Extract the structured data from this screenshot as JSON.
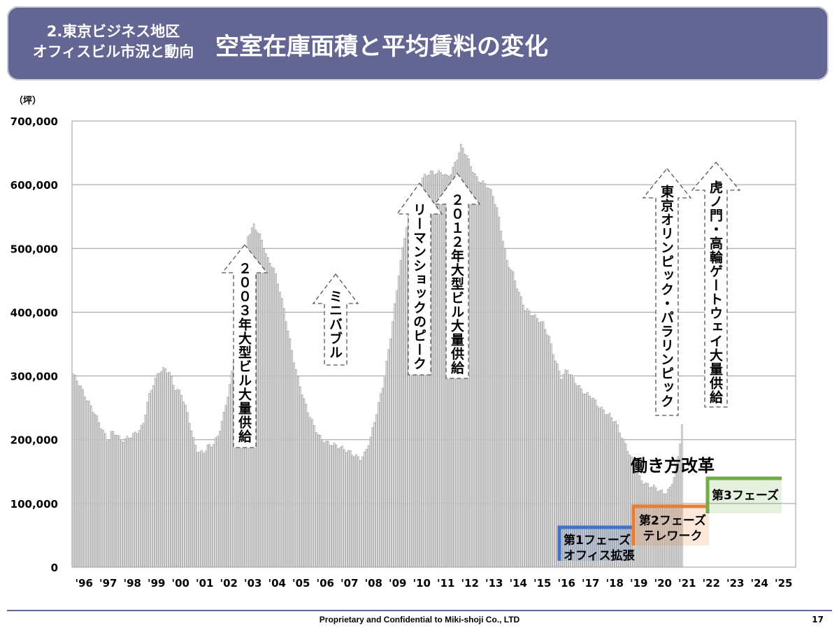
{
  "header": {
    "section_line1": "2.東京ビジネス地区",
    "section_line2": "オフィスビル市況と動向",
    "title": "空室在庫面積と平均賃料の変化"
  },
  "chart_data": {
    "type": "bar",
    "unit_label": "（坪）",
    "ylim": [
      0,
      700000
    ],
    "yticks": [
      "0",
      "100,000",
      "200,000",
      "300,000",
      "400,000",
      "500,000",
      "600,000",
      "700,000"
    ],
    "year_labels": [
      "'96",
      "'97",
      "'98",
      "'99",
      "'00",
      "'01",
      "'02",
      "'03",
      "'04",
      "'05",
      "'06",
      "'07",
      "'08",
      "'09",
      "'10",
      "'11",
      "'12",
      "'13",
      "'14",
      "'15",
      "'16",
      "'17",
      "'18",
      "'19",
      "'20",
      "'21",
      "'22",
      "'23",
      "'24",
      "'25"
    ],
    "anchors": [
      [
        1996.0,
        303000
      ],
      [
        1996.3,
        285000
      ],
      [
        1996.6,
        262000
      ],
      [
        1996.9,
        242000
      ],
      [
        1997.2,
        218000
      ],
      [
        1997.45,
        197000
      ],
      [
        1997.6,
        212000
      ],
      [
        1997.8,
        210000
      ],
      [
        1998.0,
        198000
      ],
      [
        1998.3,
        203000
      ],
      [
        1998.6,
        210000
      ],
      [
        1998.9,
        222000
      ],
      [
        1999.1,
        262000
      ],
      [
        1999.35,
        290000
      ],
      [
        1999.6,
        308000
      ],
      [
        1999.8,
        311000
      ],
      [
        2000.0,
        306000
      ],
      [
        2000.2,
        282000
      ],
      [
        2000.5,
        272000
      ],
      [
        2000.8,
        235000
      ],
      [
        2001.0,
        200000
      ],
      [
        2001.2,
        180000
      ],
      [
        2001.4,
        180000
      ],
      [
        2001.6,
        190000
      ],
      [
        2001.8,
        192000
      ],
      [
        2002.0,
        205000
      ],
      [
        2002.25,
        240000
      ],
      [
        2002.5,
        285000
      ],
      [
        2002.75,
        345000
      ],
      [
        2003.0,
        430000
      ],
      [
        2003.25,
        520000
      ],
      [
        2003.5,
        536000
      ],
      [
        2003.7,
        525000
      ],
      [
        2003.9,
        505000
      ],
      [
        2004.1,
        480000
      ],
      [
        2004.3,
        472000
      ],
      [
        2004.55,
        440000
      ],
      [
        2004.8,
        395000
      ],
      [
        2005.0,
        355000
      ],
      [
        2005.3,
        300000
      ],
      [
        2005.6,
        260000
      ],
      [
        2005.9,
        230000
      ],
      [
        2006.2,
        205000
      ],
      [
        2006.5,
        196000
      ],
      [
        2006.8,
        192000
      ],
      [
        2007.1,
        188000
      ],
      [
        2007.4,
        182000
      ],
      [
        2007.7,
        175000
      ],
      [
        2007.9,
        170000
      ],
      [
        2008.1,
        178000
      ],
      [
        2008.35,
        205000
      ],
      [
        2008.6,
        245000
      ],
      [
        2008.9,
        295000
      ],
      [
        2009.2,
        370000
      ],
      [
        2009.5,
        460000
      ],
      [
        2009.8,
        530000
      ],
      [
        2010.1,
        575000
      ],
      [
        2010.35,
        600000
      ],
      [
        2010.6,
        615000
      ],
      [
        2010.9,
        620000
      ],
      [
        2011.1,
        618000
      ],
      [
        2011.3,
        620000
      ],
      [
        2011.5,
        612000
      ],
      [
        2011.7,
        620000
      ],
      [
        2011.9,
        640000
      ],
      [
        2012.1,
        662000
      ],
      [
        2012.3,
        648000
      ],
      [
        2012.5,
        630000
      ],
      [
        2012.7,
        612000
      ],
      [
        2012.9,
        605000
      ],
      [
        2013.15,
        600000
      ],
      [
        2013.4,
        585000
      ],
      [
        2013.6,
        560000
      ],
      [
        2013.8,
        520000
      ],
      [
        2014.0,
        480000
      ],
      [
        2014.25,
        460000
      ],
      [
        2014.5,
        430000
      ],
      [
        2014.75,
        405000
      ],
      [
        2015.0,
        398000
      ],
      [
        2015.25,
        390000
      ],
      [
        2015.5,
        382000
      ],
      [
        2015.75,
        360000
      ],
      [
        2016.0,
        325000
      ],
      [
        2016.25,
        298000
      ],
      [
        2016.5,
        310000
      ],
      [
        2016.75,
        295000
      ],
      [
        2017.0,
        282000
      ],
      [
        2017.25,
        272000
      ],
      [
        2017.5,
        268000
      ],
      [
        2017.75,
        255000
      ],
      [
        2018.0,
        245000
      ],
      [
        2018.25,
        238000
      ],
      [
        2018.5,
        228000
      ],
      [
        2018.75,
        205000
      ],
      [
        2019.0,
        185000
      ],
      [
        2019.25,
        162000
      ],
      [
        2019.5,
        140000
      ],
      [
        2019.75,
        130000
      ],
      [
        2020.0,
        127000
      ],
      [
        2020.25,
        122000
      ],
      [
        2020.5,
        116000
      ],
      [
        2020.75,
        123000
      ],
      [
        2020.9,
        140000
      ],
      [
        2021.1,
        175000
      ],
      [
        2021.3,
        240000
      ]
    ]
  },
  "annotations": {
    "a2003": "２００３年大型ビル大量供給",
    "mini": "ミニバブル",
    "lehman": "リーマンショックのピーク",
    "a2012": "２０１２年大型ビル大量供給",
    "olympic": "東京オリンピック・パラリンピック",
    "toranomon": "虎ノ門・高輪ゲートウェイ大量供給"
  },
  "work_style": {
    "title": "働き方改革",
    "phase1": {
      "label": "第1フェーズ",
      "sub": "オフィス拡張",
      "color": "#4472c4"
    },
    "phase2": {
      "label": "第2フェーズ",
      "sub": "テレワーク",
      "color": "#ed7d31"
    },
    "phase3": {
      "label": "第3フェーズ",
      "color": "#70ad47"
    }
  },
  "footer": {
    "confidential": "Proprietary and Confidential to Miki-shoji Co., LTD",
    "page": "17"
  }
}
